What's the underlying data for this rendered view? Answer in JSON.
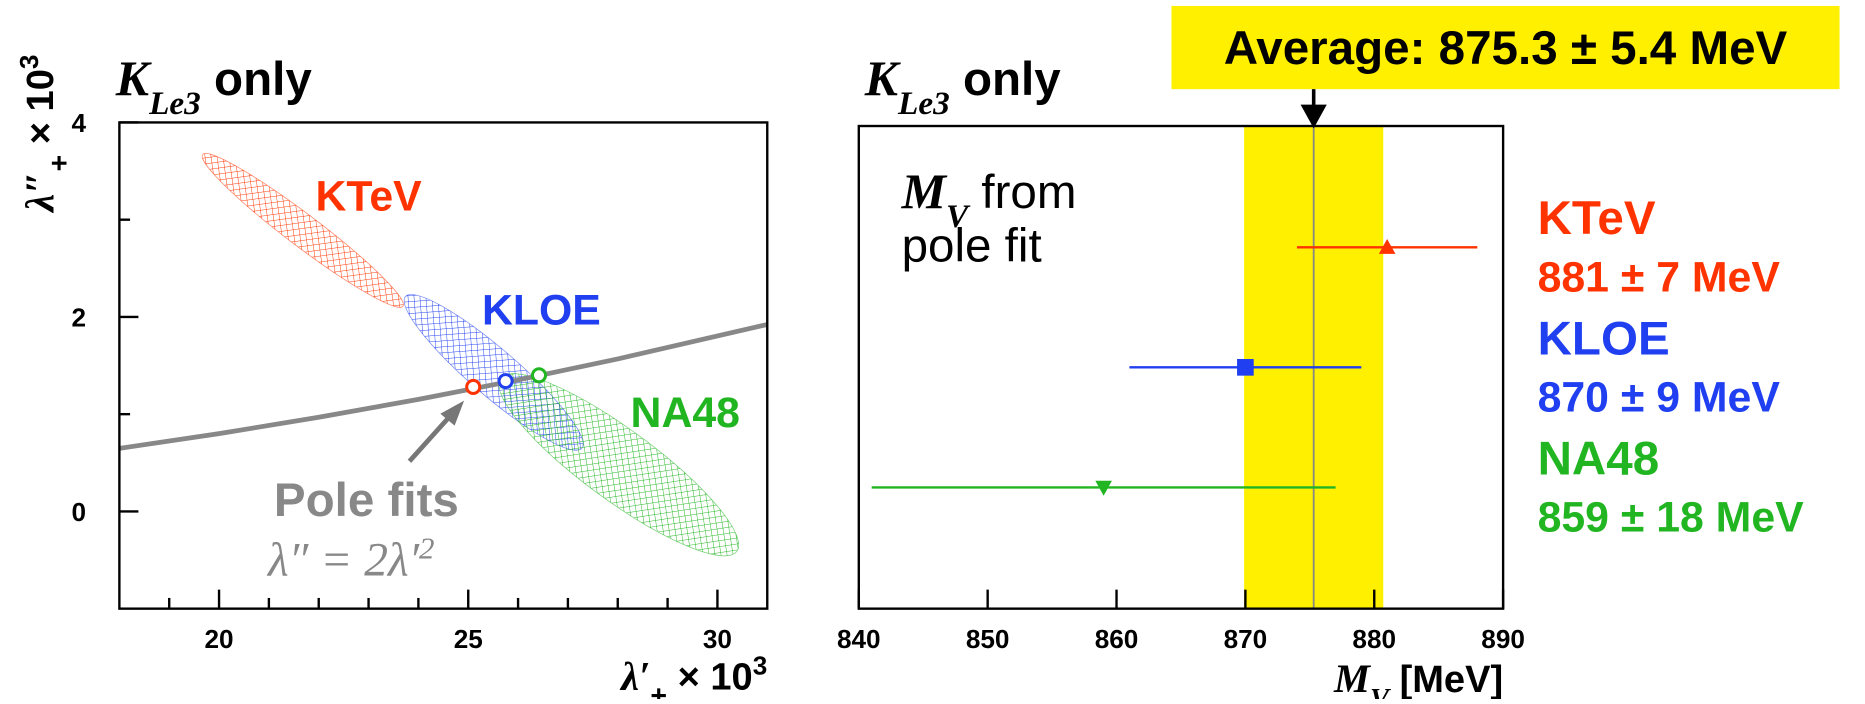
{
  "chart_data": [
    {
      "type": "ellipse",
      "title": [
        "K",
        "Le3",
        " only"
      ],
      "xlabel": [
        "λ′",
        "+",
        " × 10",
        "3"
      ],
      "ylabel": [
        "λ″",
        "+",
        " × 10",
        "3"
      ],
      "xlim": [
        18,
        31
      ],
      "ylim": [
        -1,
        4
      ],
      "xticks": [
        20,
        25,
        30
      ],
      "yticks": [
        0,
        2,
        4
      ],
      "xminorticks": [
        19,
        21,
        22,
        23,
        24,
        26,
        27,
        28,
        29
      ],
      "yminorticks": [
        1,
        3
      ],
      "series": [
        {
          "name": "KTeV",
          "color": "#ff3300",
          "center": [
            21.68,
            2.89
          ],
          "major_end": [
            23.69,
            2.11
          ],
          "minor_end": [
            21.88,
            3.02
          ],
          "pole_fit": [
            25.1,
            1.28
          ]
        },
        {
          "name": "KLOE",
          "color": "#1f3ff0",
          "center": [
            25.51,
            1.43
          ],
          "major_end": [
            27.28,
            0.65
          ],
          "minor_end": [
            25.82,
            1.61
          ],
          "pole_fit": [
            25.75,
            1.34
          ]
        },
        {
          "name": "NA48",
          "color": "#22b522",
          "center": [
            28.02,
            0.48
          ],
          "major_end": [
            30.39,
            -0.41
          ],
          "minor_end": [
            28.45,
            0.77
          ],
          "pole_fit": [
            26.42,
            1.4
          ]
        }
      ],
      "curve": {
        "color": "#888888",
        "x": [
          18,
          20,
          22,
          24,
          26,
          28,
          31
        ],
        "values": [
          0.648,
          0.8,
          0.968,
          1.152,
          1.352,
          1.568,
          1.922
        ]
      },
      "annotation": [
        "Pole fits",
        "λ″ = 2λ′",
        "2"
      ]
    },
    {
      "type": "errorbar",
      "title": [
        "K",
        "Le3",
        " only"
      ],
      "annotation": [
        "M",
        "V",
        " from",
        "pole fit"
      ],
      "xlabel": [
        "M",
        "V",
        " [MeV]"
      ],
      "xlim": [
        840,
        890
      ],
      "xticks": [
        840,
        850,
        860,
        870,
        880,
        890
      ],
      "series": [
        {
          "name": "KTeV",
          "color": "#ff3300",
          "marker": "triangle-up",
          "value": 881,
          "error": 7,
          "value_label": "881 ± 7 MeV"
        },
        {
          "name": "KLOE",
          "color": "#1f3ff0",
          "marker": "square",
          "value": 870,
          "error": 9,
          "value_label": "870 ± 9 MeV"
        },
        {
          "name": "NA48",
          "color": "#22b522",
          "marker": "triangle-down",
          "value": 859,
          "error": 18,
          "value_label": "859 ± 18 MeV"
        }
      ],
      "average": {
        "label": "Average: 875.3 ± 5.4 MeV",
        "value": 875.3,
        "error": 5.4,
        "color": "#fff000"
      }
    }
  ]
}
